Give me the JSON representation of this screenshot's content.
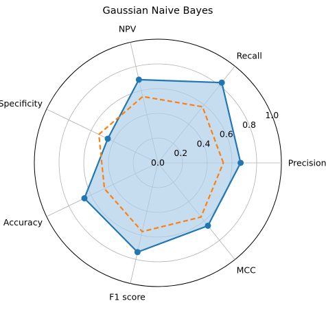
{
  "chart_data": {
    "type": "radar",
    "title": "Gaussian Naive Bayes",
    "categories": [
      "Precision",
      "Recall",
      "NPV",
      "Specificity",
      "Accuracy",
      "F1 score",
      "MCC"
    ],
    "rlim": [
      0,
      1.0
    ],
    "rticks": [
      "0.0",
      "0.2",
      "0.4",
      "0.6",
      "0.8",
      "1.0"
    ],
    "grid": true,
    "series": [
      {
        "style": "solid-filled",
        "color": "#1f77b4",
        "fill_color": "#aecde8",
        "values": [
          0.67,
          0.83,
          0.69,
          0.45,
          0.66,
          0.74,
          0.65
        ]
      },
      {
        "style": "dashed",
        "color": "#ff7f0e",
        "values": [
          0.53,
          0.58,
          0.55,
          0.53,
          0.48,
          0.57,
          0.56
        ]
      }
    ]
  }
}
